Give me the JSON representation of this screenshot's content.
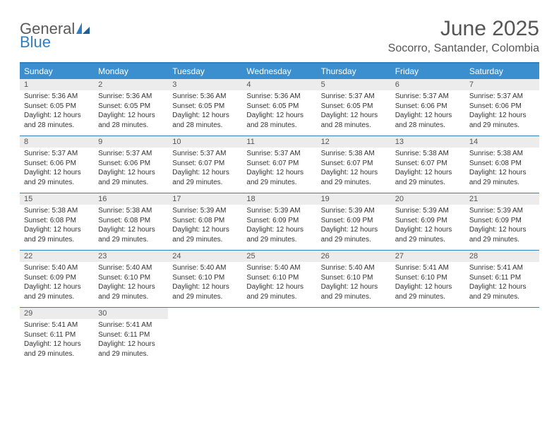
{
  "logo": {
    "text_gray": "General",
    "text_blue": "Blue"
  },
  "title": "June 2025",
  "location": "Socorro, Santander, Colombia",
  "colors": {
    "header_bg": "#3b8fcf",
    "header_border": "#2f7fc1",
    "daynum_bg": "#ececec",
    "text": "#333333",
    "muted": "#555555"
  },
  "day_names": [
    "Sunday",
    "Monday",
    "Tuesday",
    "Wednesday",
    "Thursday",
    "Friday",
    "Saturday"
  ],
  "days": [
    {
      "n": "1",
      "sr": "5:36 AM",
      "ss": "6:05 PM",
      "dl": "12 hours and 28 minutes."
    },
    {
      "n": "2",
      "sr": "5:36 AM",
      "ss": "6:05 PM",
      "dl": "12 hours and 28 minutes."
    },
    {
      "n": "3",
      "sr": "5:36 AM",
      "ss": "6:05 PM",
      "dl": "12 hours and 28 minutes."
    },
    {
      "n": "4",
      "sr": "5:36 AM",
      "ss": "6:05 PM",
      "dl": "12 hours and 28 minutes."
    },
    {
      "n": "5",
      "sr": "5:37 AM",
      "ss": "6:05 PM",
      "dl": "12 hours and 28 minutes."
    },
    {
      "n": "6",
      "sr": "5:37 AM",
      "ss": "6:06 PM",
      "dl": "12 hours and 28 minutes."
    },
    {
      "n": "7",
      "sr": "5:37 AM",
      "ss": "6:06 PM",
      "dl": "12 hours and 29 minutes."
    },
    {
      "n": "8",
      "sr": "5:37 AM",
      "ss": "6:06 PM",
      "dl": "12 hours and 29 minutes."
    },
    {
      "n": "9",
      "sr": "5:37 AM",
      "ss": "6:06 PM",
      "dl": "12 hours and 29 minutes."
    },
    {
      "n": "10",
      "sr": "5:37 AM",
      "ss": "6:07 PM",
      "dl": "12 hours and 29 minutes."
    },
    {
      "n": "11",
      "sr": "5:37 AM",
      "ss": "6:07 PM",
      "dl": "12 hours and 29 minutes."
    },
    {
      "n": "12",
      "sr": "5:38 AM",
      "ss": "6:07 PM",
      "dl": "12 hours and 29 minutes."
    },
    {
      "n": "13",
      "sr": "5:38 AM",
      "ss": "6:07 PM",
      "dl": "12 hours and 29 minutes."
    },
    {
      "n": "14",
      "sr": "5:38 AM",
      "ss": "6:08 PM",
      "dl": "12 hours and 29 minutes."
    },
    {
      "n": "15",
      "sr": "5:38 AM",
      "ss": "6:08 PM",
      "dl": "12 hours and 29 minutes."
    },
    {
      "n": "16",
      "sr": "5:38 AM",
      "ss": "6:08 PM",
      "dl": "12 hours and 29 minutes."
    },
    {
      "n": "17",
      "sr": "5:39 AM",
      "ss": "6:08 PM",
      "dl": "12 hours and 29 minutes."
    },
    {
      "n": "18",
      "sr": "5:39 AM",
      "ss": "6:09 PM",
      "dl": "12 hours and 29 minutes."
    },
    {
      "n": "19",
      "sr": "5:39 AM",
      "ss": "6:09 PM",
      "dl": "12 hours and 29 minutes."
    },
    {
      "n": "20",
      "sr": "5:39 AM",
      "ss": "6:09 PM",
      "dl": "12 hours and 29 minutes."
    },
    {
      "n": "21",
      "sr": "5:39 AM",
      "ss": "6:09 PM",
      "dl": "12 hours and 29 minutes."
    },
    {
      "n": "22",
      "sr": "5:40 AM",
      "ss": "6:09 PM",
      "dl": "12 hours and 29 minutes."
    },
    {
      "n": "23",
      "sr": "5:40 AM",
      "ss": "6:10 PM",
      "dl": "12 hours and 29 minutes."
    },
    {
      "n": "24",
      "sr": "5:40 AM",
      "ss": "6:10 PM",
      "dl": "12 hours and 29 minutes."
    },
    {
      "n": "25",
      "sr": "5:40 AM",
      "ss": "6:10 PM",
      "dl": "12 hours and 29 minutes."
    },
    {
      "n": "26",
      "sr": "5:40 AM",
      "ss": "6:10 PM",
      "dl": "12 hours and 29 minutes."
    },
    {
      "n": "27",
      "sr": "5:41 AM",
      "ss": "6:10 PM",
      "dl": "12 hours and 29 minutes."
    },
    {
      "n": "28",
      "sr": "5:41 AM",
      "ss": "6:11 PM",
      "dl": "12 hours and 29 minutes."
    },
    {
      "n": "29",
      "sr": "5:41 AM",
      "ss": "6:11 PM",
      "dl": "12 hours and 29 minutes."
    },
    {
      "n": "30",
      "sr": "5:41 AM",
      "ss": "6:11 PM",
      "dl": "12 hours and 29 minutes."
    }
  ],
  "labels": {
    "sunrise": "Sunrise: ",
    "sunset": "Sunset: ",
    "daylight": "Daylight: "
  }
}
